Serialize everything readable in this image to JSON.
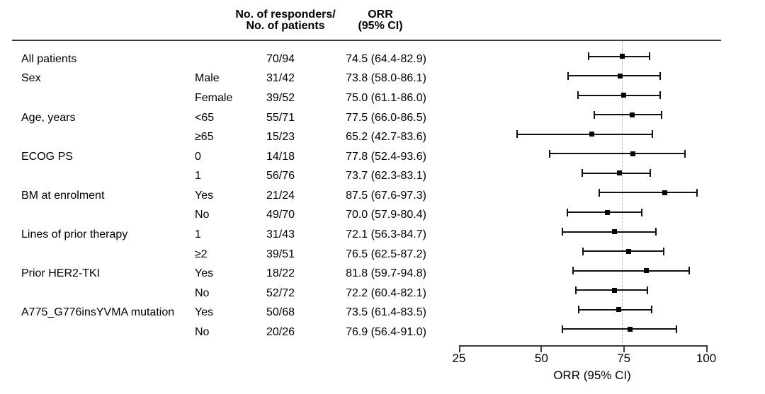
{
  "header": {
    "responders_line1": "No. of responders/",
    "responders_line2": "No. of patients",
    "orr_line1": "ORR",
    "orr_line2": "(95% CI)"
  },
  "chart_data": {
    "type": "forest",
    "axis": {
      "label": "ORR (95% CI)",
      "min": 25,
      "max": 100,
      "ticks": [
        25,
        50,
        75,
        100
      ]
    },
    "reference_line": 74.5,
    "colors": {
      "marker": "#000000",
      "ci_line": "#111111",
      "reference_line": "#b9b9b9",
      "axis_line": "#3c3c3c",
      "text": "#000000"
    },
    "rows": [
      {
        "group": "All patients",
        "subgroup": "",
        "responders": "70/94",
        "orr_text": "74.5 (64.4-82.9)",
        "estimate": 74.5,
        "ci_low": 64.4,
        "ci_high": 82.9
      },
      {
        "group": "Sex",
        "subgroup": "Male",
        "responders": "31/42",
        "orr_text": "73.8 (58.0-86.1)",
        "estimate": 73.8,
        "ci_low": 58.0,
        "ci_high": 86.1
      },
      {
        "group": "",
        "subgroup": "Female",
        "responders": "39/52",
        "orr_text": "75.0 (61.1-86.0)",
        "estimate": 75.0,
        "ci_low": 61.1,
        "ci_high": 86.0
      },
      {
        "group": "Age, years",
        "subgroup": "<65",
        "responders": "55/71",
        "orr_text": "77.5 (66.0-86.5)",
        "estimate": 77.5,
        "ci_low": 66.0,
        "ci_high": 86.5
      },
      {
        "group": "",
        "subgroup": "≥65",
        "responders": "15/23",
        "orr_text": "65.2 (42.7-83.6)",
        "estimate": 65.2,
        "ci_low": 42.7,
        "ci_high": 83.6
      },
      {
        "group": "ECOG PS",
        "subgroup": "0",
        "responders": "14/18",
        "orr_text": "77.8 (52.4-93.6)",
        "estimate": 77.8,
        "ci_low": 52.4,
        "ci_high": 93.6
      },
      {
        "group": "",
        "subgroup": "1",
        "responders": "56/76",
        "orr_text": "73.7 (62.3-83.1)",
        "estimate": 73.7,
        "ci_low": 62.3,
        "ci_high": 83.1
      },
      {
        "group": "BM at enrolment",
        "subgroup": "Yes",
        "responders": "21/24",
        "orr_text": "87.5 (67.6-97.3)",
        "estimate": 87.5,
        "ci_low": 67.6,
        "ci_high": 97.3
      },
      {
        "group": "",
        "subgroup": "No",
        "responders": "49/70",
        "orr_text": "70.0 (57.9-80.4)",
        "estimate": 70.0,
        "ci_low": 57.9,
        "ci_high": 80.4
      },
      {
        "group": "Lines of prior therapy",
        "subgroup": "1",
        "responders": "31/43",
        "orr_text": "72.1 (56.3-84.7)",
        "estimate": 72.1,
        "ci_low": 56.3,
        "ci_high": 84.7
      },
      {
        "group": "",
        "subgroup": "≥2",
        "responders": "39/51",
        "orr_text": "76.5 (62.5-87.2)",
        "estimate": 76.5,
        "ci_low": 62.5,
        "ci_high": 87.2
      },
      {
        "group": "Prior HER2-TKI",
        "subgroup": "Yes",
        "responders": "18/22",
        "orr_text": "81.8 (59.7-94.8)",
        "estimate": 81.8,
        "ci_low": 59.7,
        "ci_high": 94.8
      },
      {
        "group": "",
        "subgroup": "No",
        "responders": "52/72",
        "orr_text": "72.2 (60.4-82.1)",
        "estimate": 72.2,
        "ci_low": 60.4,
        "ci_high": 82.1
      },
      {
        "group": "A775_G776insYVMA mutation",
        "subgroup": "Yes",
        "responders": "50/68",
        "orr_text": "73.5 (61.4-83.5)",
        "estimate": 73.5,
        "ci_low": 61.4,
        "ci_high": 83.5
      },
      {
        "group": "",
        "subgroup": "No",
        "responders": "20/26",
        "orr_text": "76.9 (56.4-91.0)",
        "estimate": 76.9,
        "ci_low": 56.4,
        "ci_high": 91.0
      }
    ]
  }
}
